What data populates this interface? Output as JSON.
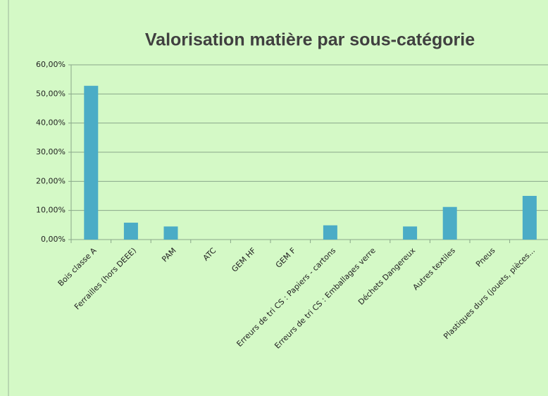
{
  "chart_data": {
    "type": "bar",
    "title": "Valorisation matière par sous-catégorie",
    "categories": [
      "Bois classe A",
      "Ferrailles (hors DEEE)",
      "PAM",
      "ATC",
      "GEM HF",
      "GEM F",
      "Erreurs de tri CS : Papiers - cartons",
      "Erreurs de tri CS : Emballages verre",
      "Déchets Dangereux",
      "Autres textiles",
      "Pneus",
      "Plastiques durs (jouets, pièces..."
    ],
    "values": [
      52.8,
      5.8,
      4.5,
      0,
      0,
      0,
      4.9,
      0,
      4.5,
      11.2,
      0,
      15
    ],
    "color": "#4bacc6",
    "ylim": [
      0,
      60
    ],
    "yticks": [
      {
        "value": 0,
        "label": "0,00%"
      },
      {
        "value": 10,
        "label": "10,00%"
      },
      {
        "value": 20,
        "label": "20,00%"
      },
      {
        "value": 30,
        "label": "30,00%"
      },
      {
        "value": 40,
        "label": "40,00%"
      },
      {
        "value": 50,
        "label": "50,00%"
      },
      {
        "value": 60,
        "label": "60,00%"
      }
    ],
    "grid": true
  }
}
